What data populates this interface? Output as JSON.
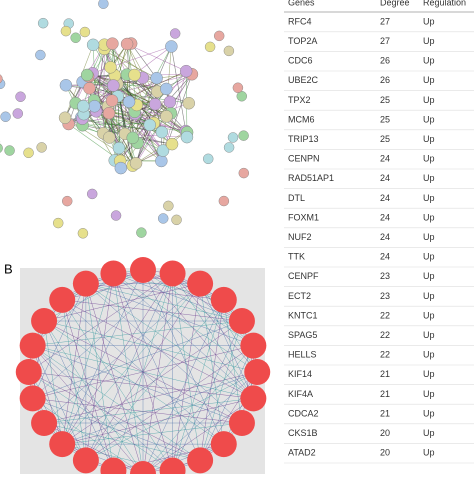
{
  "panel_label": "B",
  "table": {
    "header": [
      "Genes",
      "Degree",
      "Regulation"
    ],
    "rows": [
      [
        "RFC4",
        "27",
        "Up"
      ],
      [
        "TOP2A",
        "27",
        "Up"
      ],
      [
        "CDC6",
        "26",
        "Up"
      ],
      [
        "UBE2C",
        "26",
        "Up"
      ],
      [
        "TPX2",
        "25",
        "Up"
      ],
      [
        "MCM6",
        "25",
        "Up"
      ],
      [
        "TRIP13",
        "25",
        "Up"
      ],
      [
        "CENPN",
        "24",
        "Up"
      ],
      [
        "RAD51AP1",
        "24",
        "Up"
      ],
      [
        "DTL",
        "24",
        "Up"
      ],
      [
        "FOXM1",
        "24",
        "Up"
      ],
      [
        "NUF2",
        "24",
        "Up"
      ],
      [
        "TTK",
        "24",
        "Up"
      ],
      [
        "CENPF",
        "23",
        "Up"
      ],
      [
        "ECT2",
        "23",
        "Up"
      ],
      [
        "KNTC1",
        "22",
        "Up"
      ],
      [
        "SPAG5",
        "22",
        "Up"
      ],
      [
        "HELLS",
        "22",
        "Up"
      ],
      [
        "KIF14",
        "21",
        "Up"
      ],
      [
        "KIF4A",
        "21",
        "Up"
      ],
      [
        "CDCA2",
        "21",
        "Up"
      ],
      [
        "CKS1B",
        "20",
        "Up"
      ],
      [
        "ATAD2",
        "20",
        "Up"
      ]
    ]
  }
}
